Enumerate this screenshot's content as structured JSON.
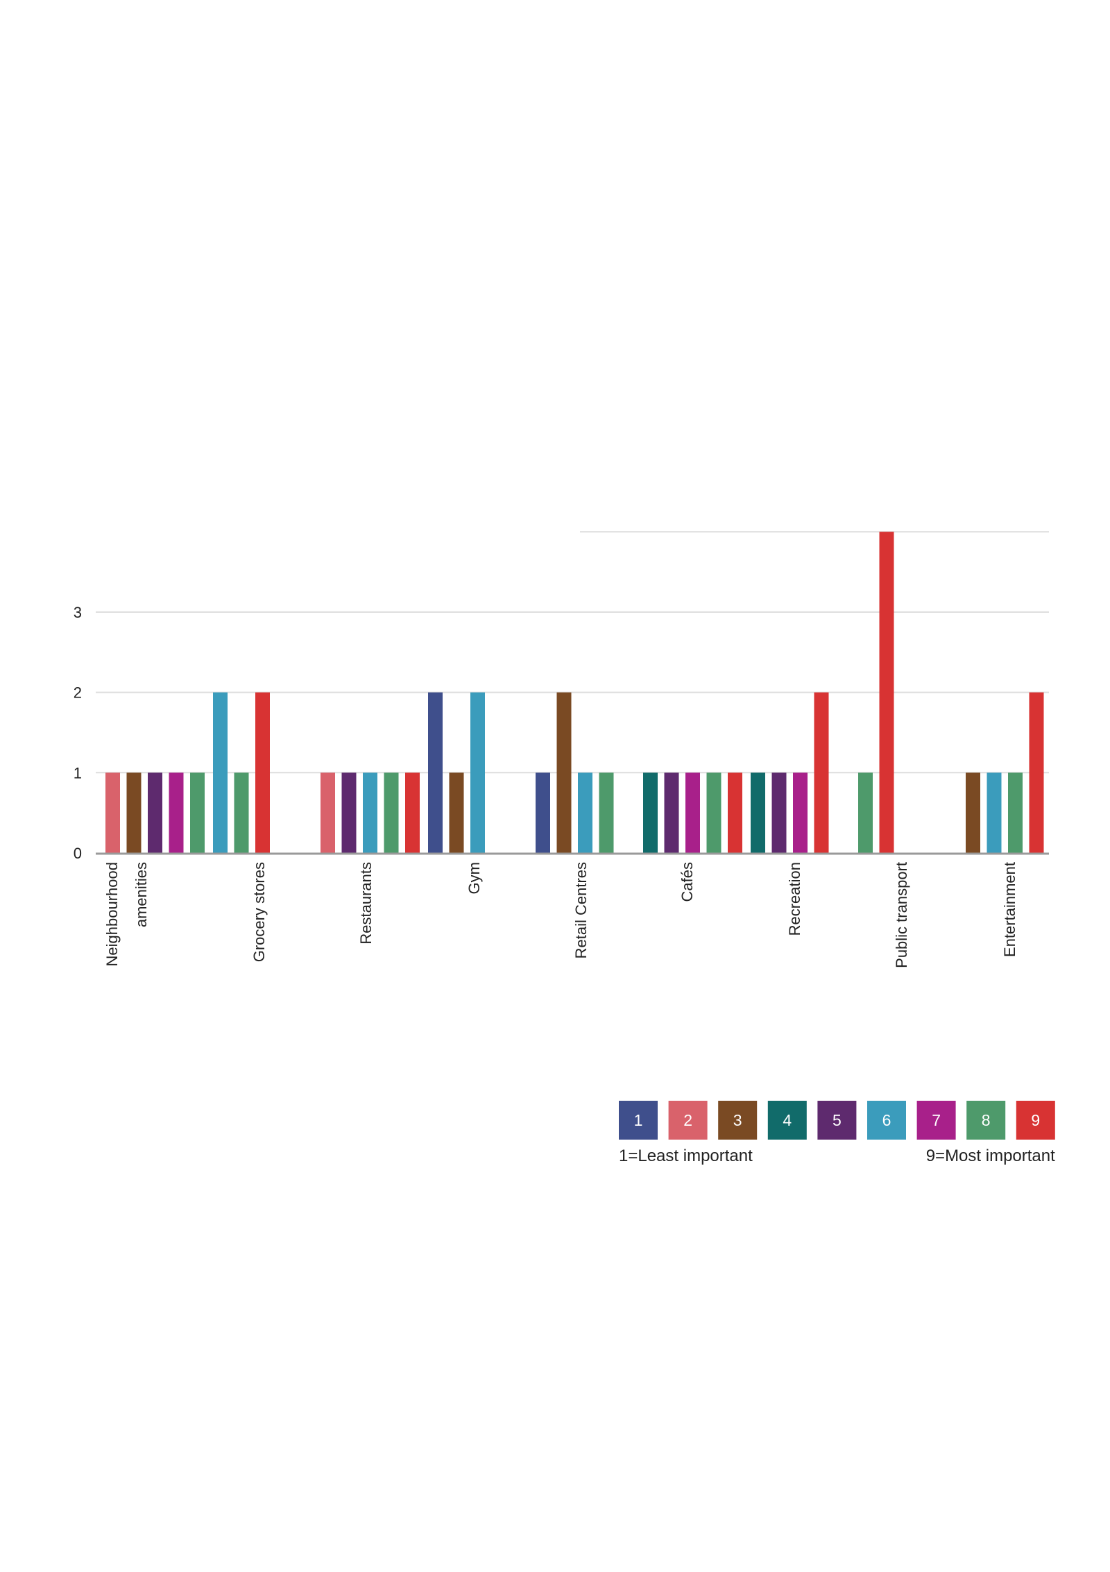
{
  "chart_data": {
    "type": "bar",
    "title": "",
    "xlabel": "",
    "ylabel": "",
    "ylim": [
      0,
      4
    ],
    "y_ticks": [
      "0",
      "1",
      "2",
      "3"
    ],
    "grid": true,
    "legend_placement": "bottom-right",
    "categories": [
      [
        "Neighbourhood",
        "amenities"
      ],
      [
        "Grocery stores"
      ],
      [
        "Restaurants"
      ],
      [
        "Gym"
      ],
      [
        "Retail Centres"
      ],
      [
        "Cafés"
      ],
      [
        "Recreation"
      ],
      [
        "Public transport"
      ],
      [
        "Entertainment"
      ]
    ],
    "series": [
      {
        "name": "1",
        "color": "#3f4f8c",
        "values": [
          0,
          0,
          0,
          2,
          1,
          0,
          0,
          0,
          0
        ]
      },
      {
        "name": "2",
        "color": "#d9626b",
        "values": [
          1,
          0,
          1,
          0,
          0,
          0,
          0,
          0,
          0
        ]
      },
      {
        "name": "3",
        "color": "#7a4a23",
        "values": [
          1,
          0,
          0,
          1,
          2,
          0,
          0,
          0,
          1
        ]
      },
      {
        "name": "4",
        "color": "#116b6a",
        "values": [
          0,
          0,
          0,
          0,
          0,
          1,
          1,
          0,
          0
        ]
      },
      {
        "name": "5",
        "color": "#5e2a6e",
        "values": [
          1,
          0,
          1,
          0,
          0,
          1,
          1,
          0,
          0
        ]
      },
      {
        "name": "6",
        "color": "#3b9cbc",
        "values": [
          0,
          2,
          1,
          2,
          1,
          0,
          0,
          0,
          1
        ]
      },
      {
        "name": "7",
        "color": "#a8208a",
        "values": [
          1,
          0,
          0,
          0,
          0,
          1,
          1,
          0,
          0
        ]
      },
      {
        "name": "8",
        "color": "#4e9a6b",
        "values": [
          1,
          1,
          1,
          0,
          1,
          1,
          0,
          1,
          1
        ]
      },
      {
        "name": "9",
        "color": "#d83333",
        "values": [
          0,
          2,
          1,
          0,
          0,
          1,
          2,
          4,
          2
        ]
      }
    ],
    "legend": {
      "low_label": "1=Least important",
      "high_label": "9=Most important"
    }
  }
}
